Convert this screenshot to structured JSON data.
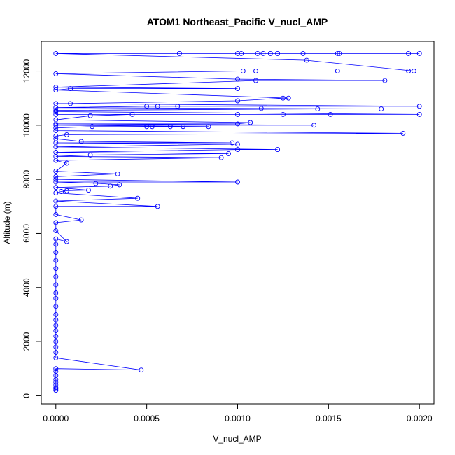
{
  "chart_data": {
    "type": "line",
    "title": "ATOM1 Northeast_Pacific V_nucl_AMP",
    "xlabel": "V_nucl_AMP",
    "ylabel": "Altitude (m)",
    "xlim": [
      -8e-05,
      0.00208
    ],
    "ylim": [
      -300,
      13100
    ],
    "x_ticks": [
      0.0,
      0.0005,
      0.001,
      0.0015,
      0.002
    ],
    "x_tick_labels": [
      "0.0000",
      "0.0005",
      "0.0010",
      "0.0015",
      "0.0020"
    ],
    "y_ticks": [
      0,
      2000,
      4000,
      6000,
      8000,
      10000,
      12000
    ],
    "y_tick_labels": [
      "0",
      "2000",
      "4000",
      "6000",
      "8000",
      "10000",
      "12000"
    ],
    "series": [
      {
        "color": "#0000ff",
        "points": [
          [
            0.0,
            200
          ],
          [
            0.0,
            250
          ],
          [
            0.0,
            300
          ],
          [
            0.0,
            400
          ],
          [
            0.0,
            500
          ],
          [
            0.0,
            600
          ],
          [
            0.0,
            750
          ],
          [
            0.0,
            900
          ],
          [
            0.0,
            1000
          ],
          [
            0.00047,
            950
          ],
          [
            0.0,
            1400
          ],
          [
            0.0,
            1600
          ],
          [
            0.0,
            1800
          ],
          [
            0.0,
            2000
          ],
          [
            0.0,
            2200
          ],
          [
            0.0,
            2400
          ],
          [
            0.0,
            2600
          ],
          [
            0.0,
            2800
          ],
          [
            0.0,
            3000
          ],
          [
            0.0,
            3300
          ],
          [
            0.0,
            3600
          ],
          [
            0.0,
            3800
          ],
          [
            0.0,
            4100
          ],
          [
            0.0,
            4400
          ],
          [
            0.0,
            4700
          ],
          [
            0.0,
            5000
          ],
          [
            0.0,
            5300
          ],
          [
            0.0,
            5600
          ],
          [
            0.0,
            5800
          ],
          [
            6e-05,
            5700
          ],
          [
            0.0,
            6100
          ],
          [
            0.0,
            6400
          ],
          [
            0.00014,
            6500
          ],
          [
            0.0,
            6700
          ],
          [
            0.0,
            7000
          ],
          [
            0.00056,
            7000
          ],
          [
            0.0,
            7200
          ],
          [
            0.00045,
            7300
          ],
          [
            0.0,
            7500
          ],
          [
            3e-05,
            7550
          ],
          [
            6e-05,
            7580
          ],
          [
            0.00018,
            7600
          ],
          [
            0.0,
            7700
          ],
          [
            0.0003,
            7750
          ],
          [
            0.00035,
            7800
          ],
          [
            0.00022,
            7850
          ],
          [
            0.0,
            7900
          ],
          [
            0.001,
            7900
          ],
          [
            0.0,
            8000
          ],
          [
            0.0,
            8100
          ],
          [
            0.00034,
            8200
          ],
          [
            0.0,
            8300
          ],
          [
            6e-05,
            8600
          ],
          [
            0.0,
            8700
          ],
          [
            0.00091,
            8800
          ],
          [
            0.0,
            8850
          ],
          [
            0.00019,
            8900
          ],
          [
            0.00095,
            8950
          ],
          [
            0.0,
            9000
          ],
          [
            0.001,
            9100
          ],
          [
            0.00122,
            9100
          ],
          [
            0.0,
            9200
          ],
          [
            0.001,
            9300
          ],
          [
            0.0,
            9350
          ],
          [
            0.00097,
            9350
          ],
          [
            0.00014,
            9400
          ],
          [
            0.0,
            9500
          ],
          [
            0.0,
            9600
          ],
          [
            6e-05,
            9650
          ],
          [
            0.00191,
            9700
          ],
          [
            0.0,
            9800
          ],
          [
            0.0,
            9900
          ],
          [
            0.0002,
            9950
          ],
          [
            0.0005,
            9950
          ],
          [
            0.00053,
            9950
          ],
          [
            0.00063,
            9950
          ],
          [
            0.0007,
            9950
          ],
          [
            0.00084,
            9950
          ],
          [
            0.0,
            10000
          ],
          [
            0.00142,
            10000
          ],
          [
            0.0,
            10050
          ],
          [
            0.001,
            10050
          ],
          [
            0.00107,
            10100
          ],
          [
            0.0,
            10200
          ],
          [
            0.00019,
            10350
          ],
          [
            0.00042,
            10400
          ],
          [
            0.0,
            10400
          ],
          [
            0.001,
            10400
          ],
          [
            0.00125,
            10400
          ],
          [
            0.00151,
            10400
          ],
          [
            0.002,
            10400
          ],
          [
            0.0,
            10500
          ],
          [
            0.0,
            10550
          ],
          [
            0.00144,
            10600
          ],
          [
            0.00179,
            10600
          ],
          [
            0.00113,
            10620
          ],
          [
            0.0,
            10650
          ],
          [
            0.0005,
            10700
          ],
          [
            0.00056,
            10700
          ],
          [
            0.00067,
            10700
          ],
          [
            0.002,
            10700
          ],
          [
            0.0,
            10800
          ],
          [
            8e-05,
            10800
          ],
          [
            0.001,
            10900
          ],
          [
            0.00125,
            11000
          ],
          [
            0.00128,
            11000
          ],
          [
            0.0,
            11300
          ],
          [
            8e-05,
            11350
          ],
          [
            0.001,
            11350
          ],
          [
            0.0,
            11400
          ],
          [
            0.0011,
            11650
          ],
          [
            0.00181,
            11650
          ],
          [
            0.001,
            11700
          ],
          [
            0.0,
            11900
          ],
          [
            0.00103,
            12000
          ],
          [
            0.0011,
            12000
          ],
          [
            0.00155,
            12000
          ],
          [
            0.00194,
            12000
          ],
          [
            0.00197,
            12000
          ],
          [
            0.00138,
            12400
          ],
          [
            0.0,
            12650
          ],
          [
            0.00068,
            12650
          ],
          [
            0.001,
            12650
          ],
          [
            0.00102,
            12650
          ],
          [
            0.00111,
            12650
          ],
          [
            0.00114,
            12650
          ],
          [
            0.00118,
            12650
          ],
          [
            0.00122,
            12650
          ],
          [
            0.00136,
            12650
          ],
          [
            0.00155,
            12650
          ],
          [
            0.00156,
            12650
          ],
          [
            0.00194,
            12650
          ],
          [
            0.002,
            12650
          ]
        ]
      }
    ]
  }
}
